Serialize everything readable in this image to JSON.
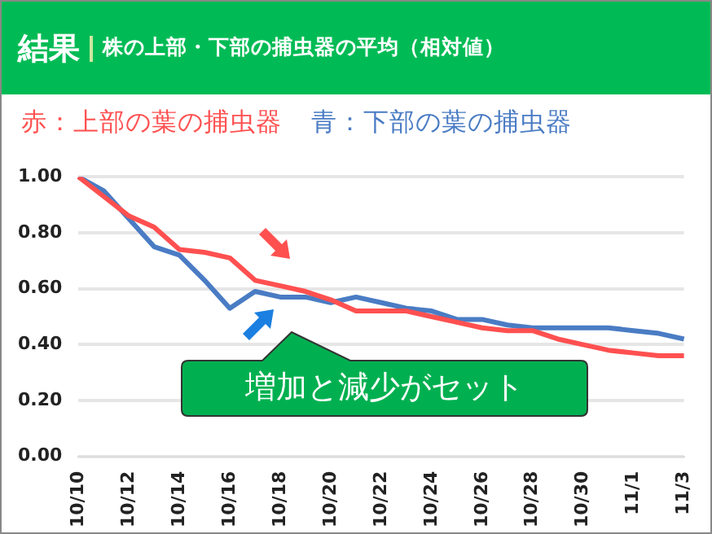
{
  "chart_data": {
    "type": "line",
    "title": "結果",
    "subtitle": "株の上部・下部の捕虫器の平均（相対値）",
    "categories": [
      "10/10",
      null,
      "10/12",
      null,
      "10/14",
      null,
      "10/16",
      null,
      "10/18",
      null,
      "10/20",
      null,
      "10/22",
      null,
      "10/24",
      null,
      "10/26",
      null,
      "10/28",
      null,
      "10/30",
      null,
      "11/1",
      null,
      "11/3"
    ],
    "series": [
      {
        "name": "赤：上部の葉の捕虫器",
        "color": "#ff5050",
        "values": [
          1.0,
          0.93,
          0.86,
          0.82,
          0.74,
          0.73,
          0.71,
          0.63,
          0.61,
          0.59,
          0.56,
          0.52,
          0.52,
          0.52,
          0.5,
          0.48,
          0.46,
          0.45,
          0.45,
          0.42,
          0.4,
          0.38,
          0.37,
          0.36,
          0.36
        ]
      },
      {
        "name": "青：下部の葉の捕虫器",
        "color": "#4a7cc4",
        "values": [
          1.0,
          0.95,
          0.85,
          0.75,
          0.72,
          0.63,
          0.53,
          0.59,
          0.57,
          0.57,
          0.55,
          0.57,
          0.55,
          0.53,
          0.52,
          0.49,
          0.49,
          0.47,
          0.46,
          0.46,
          0.46,
          0.46,
          0.45,
          0.44,
          0.42
        ]
      }
    ],
    "ylim": [
      0,
      1
    ],
    "yticks": [
      {
        "value": 0,
        "label": "0.00"
      },
      {
        "value": 0.2,
        "label": "0.20"
      },
      {
        "value": 0.4,
        "label": "0.40"
      },
      {
        "value": 0.6,
        "label": "0.60"
      },
      {
        "value": 0.8,
        "label": "0.80"
      },
      {
        "value": 1,
        "label": "1.00"
      }
    ],
    "grid": "y",
    "legend": "top",
    "marker": "none",
    "line_style": "solid",
    "annotations": [
      "増加と減少がセット"
    ]
  }
}
